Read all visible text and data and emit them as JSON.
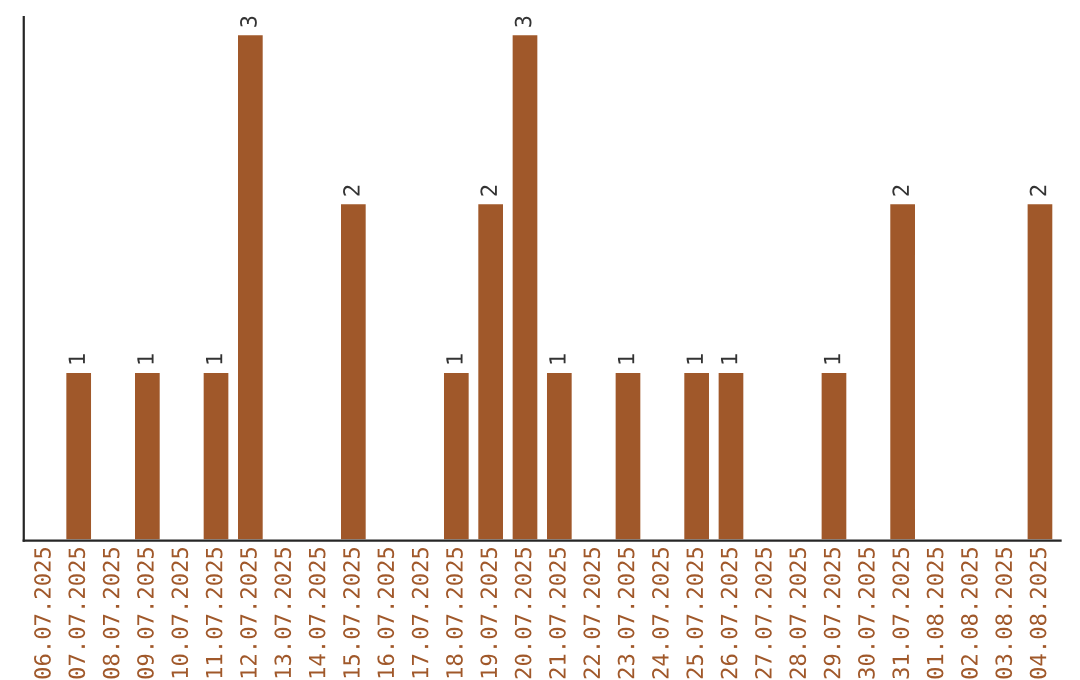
{
  "chart_data": {
    "type": "bar",
    "categories": [
      "06.07.2025",
      "07.07.2025",
      "08.07.2025",
      "09.07.2025",
      "10.07.2025",
      "11.07.2025",
      "12.07.2025",
      "13.07.2025",
      "14.07.2025",
      "15.07.2025",
      "16.07.2025",
      "17.07.2025",
      "18.07.2025",
      "19.07.2025",
      "20.07.2025",
      "21.07.2025",
      "22.07.2025",
      "23.07.2025",
      "24.07.2025",
      "25.07.2025",
      "26.07.2025",
      "27.07.2025",
      "28.07.2025",
      "29.07.2025",
      "30.07.2025",
      "31.07.2025",
      "01.08.2025",
      "02.08.2025",
      "03.08.2025",
      "04.08.2025"
    ],
    "values": [
      null,
      1,
      null,
      1,
      null,
      1,
      3,
      null,
      null,
      2,
      null,
      null,
      1,
      2,
      3,
      1,
      null,
      1,
      null,
      1,
      1,
      null,
      null,
      1,
      null,
      2,
      null,
      null,
      null,
      2
    ],
    "value_labels": [
      null,
      "1",
      null,
      "1",
      null,
      "1",
      "3",
      null,
      null,
      "2",
      null,
      null,
      "1",
      "2",
      "3",
      "1",
      null,
      "1",
      null,
      "1",
      "1",
      null,
      null,
      "1",
      null,
      "2",
      null,
      null,
      null,
      "2"
    ],
    "color": "#a0582a",
    "ylim": [
      0,
      3.1
    ],
    "tick_labels": "x",
    "grid": false,
    "legend": false
  }
}
